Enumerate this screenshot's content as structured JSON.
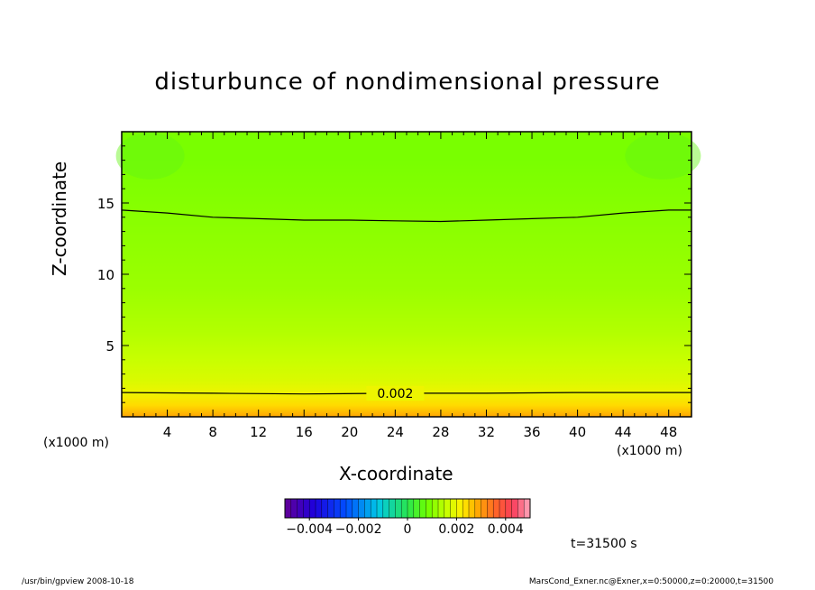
{
  "chart_data": {
    "type": "heatmap",
    "title": "disturbunce of nondimensional pressure",
    "xlabel": "X-coordinate",
    "ylabel": "Z-coordinate",
    "x_unit": "(x1000 m)",
    "y_unit": "(x1000 m)",
    "xlim": [
      0,
      50
    ],
    "ylim": [
      0,
      20
    ],
    "xticks": [
      4,
      8,
      12,
      16,
      20,
      24,
      28,
      32,
      36,
      40,
      44,
      48
    ],
    "yticks": [
      5,
      10,
      15
    ],
    "contours": [
      {
        "level": 0.002,
        "label": "0.002",
        "x": [
          0,
          8,
          16,
          24,
          32,
          40,
          48,
          50
        ],
        "z": [
          1.7,
          1.65,
          1.6,
          1.65,
          1.65,
          1.7,
          1.7,
          1.7
        ]
      },
      {
        "level": 0.001,
        "x": [
          0,
          4,
          8,
          12,
          16,
          20,
          24,
          28,
          32,
          36,
          40,
          44,
          48,
          50
        ],
        "z": [
          14.5,
          14.3,
          14.0,
          13.9,
          13.8,
          13.8,
          13.75,
          13.7,
          13.8,
          13.9,
          14.0,
          14.3,
          14.5,
          14.5
        ]
      }
    ],
    "field_profile": {
      "z": [
        0,
        0.8,
        1.7,
        2.5,
        4,
        6,
        9,
        12,
        15,
        18,
        20
      ],
      "value": [
        0.0029,
        0.0024,
        0.002,
        0.0018,
        0.0016,
        0.0014,
        0.0012,
        0.0011,
        0.001,
        0.0009,
        0.0009
      ]
    },
    "colorbar": {
      "range": [
        -0.005,
        0.005
      ],
      "ticks": [
        -0.004,
        -0.002,
        0,
        0.002,
        0.004
      ],
      "tick_labels": [
        "−0.004",
        "−0.002",
        "0",
        "0.002",
        "0.004"
      ]
    }
  },
  "timestamp": "t=31500 s",
  "footer": {
    "left": "/usr/bin/gpview  2008-10-18",
    "right": "MarsCond_Exner.nc@Exner,x=0:50000,z=0:20000,t=31500"
  }
}
